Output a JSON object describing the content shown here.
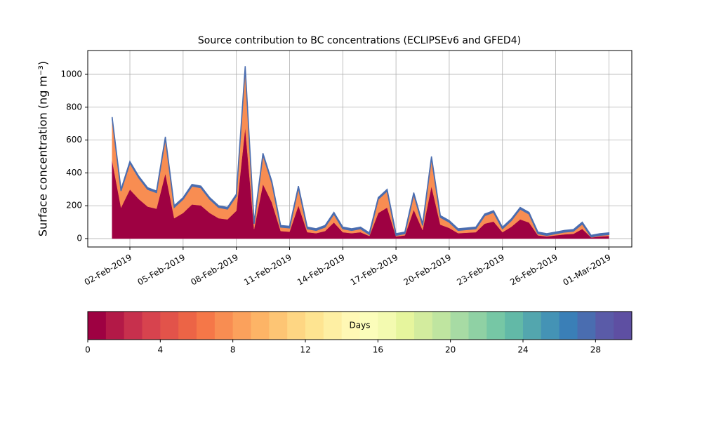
{
  "chart_data": {
    "type": "stacked_area",
    "title": "Source contribution to BC concentrations (ECLIPSEv6 and GFED4)",
    "ylabel": "Surface concentration (ng m⁻³)",
    "x": [
      "2019-02-01T00:00",
      "2019-02-01T12:00",
      "2019-02-02T00:00",
      "2019-02-02T12:00",
      "2019-02-03T00:00",
      "2019-02-03T12:00",
      "2019-02-04T00:00",
      "2019-02-04T12:00",
      "2019-02-05T00:00",
      "2019-02-05T12:00",
      "2019-02-06T00:00",
      "2019-02-06T12:00",
      "2019-02-07T00:00",
      "2019-02-07T12:00",
      "2019-02-08T00:00",
      "2019-02-08T12:00",
      "2019-02-09T00:00",
      "2019-02-09T12:00",
      "2019-02-10T00:00",
      "2019-02-10T12:00",
      "2019-02-11T00:00",
      "2019-02-11T12:00",
      "2019-02-12T00:00",
      "2019-02-12T12:00",
      "2019-02-13T00:00",
      "2019-02-13T12:00",
      "2019-02-14T00:00",
      "2019-02-14T12:00",
      "2019-02-15T00:00",
      "2019-02-15T12:00",
      "2019-02-16T00:00",
      "2019-02-16T12:00",
      "2019-02-17T00:00",
      "2019-02-17T12:00",
      "2019-02-18T00:00",
      "2019-02-18T12:00",
      "2019-02-19T00:00",
      "2019-02-19T12:00",
      "2019-02-20T00:00",
      "2019-02-20T12:00",
      "2019-02-21T00:00",
      "2019-02-21T12:00",
      "2019-02-22T00:00",
      "2019-02-22T12:00",
      "2019-02-23T00:00",
      "2019-02-23T12:00",
      "2019-02-24T00:00",
      "2019-02-24T12:00",
      "2019-02-25T00:00",
      "2019-02-25T12:00",
      "2019-02-26T00:00",
      "2019-02-26T12:00",
      "2019-02-27T00:00",
      "2019-02-27T12:00",
      "2019-02-28T00:00",
      "2019-02-28T12:00",
      "2019-03-01T00:00"
    ],
    "series": [
      {
        "color": "#9e0142",
        "values": [
          475,
          189,
          299,
          241,
          195,
          182,
          397,
          124,
          156,
          208,
          202,
          156,
          124,
          117,
          169,
          676,
          59,
          332,
          221,
          46,
          42,
          202,
          39,
          33,
          46,
          98,
          39,
          33,
          39,
          16,
          156,
          189,
          13,
          20,
          176,
          52,
          319,
          85,
          65,
          33,
          36,
          39,
          91,
          104,
          39,
          72,
          117,
          98,
          20,
          13,
          20,
          26,
          29,
          59,
          7,
          13,
          16
        ]
      },
      {
        "color": "#f88d52",
        "values": [
          255,
          101,
          161,
          129,
          105,
          98,
          213,
          66,
          84,
          112,
          108,
          84,
          66,
          63,
          91,
          364,
          31,
          178,
          119,
          24,
          23,
          108,
          21,
          17,
          24,
          52,
          21,
          17,
          21,
          9,
          84,
          101,
          7,
          10,
          94,
          28,
          171,
          45,
          35,
          17,
          19,
          21,
          49,
          56,
          21,
          38,
          63,
          52,
          10,
          7,
          10,
          14,
          16,
          31,
          3,
          7,
          9
        ]
      },
      {
        "color": "#4a6db0",
        "values": [
          10,
          10,
          10,
          10,
          10,
          10,
          10,
          10,
          10,
          10,
          10,
          10,
          10,
          10,
          10,
          10,
          10,
          10,
          10,
          10,
          10,
          10,
          10,
          10,
          10,
          10,
          10,
          10,
          10,
          10,
          10,
          10,
          10,
          10,
          10,
          10,
          10,
          10,
          10,
          10,
          10,
          10,
          10,
          10,
          10,
          10,
          10,
          10,
          10,
          10,
          10,
          10,
          10,
          10,
          10,
          10,
          10
        ]
      }
    ],
    "xlim": [
      "2019-01-30T15:00",
      "2019-03-02T07:00"
    ],
    "xticks": [
      {
        "value": "2019-02-02T00:00",
        "label": "02-Feb-2019"
      },
      {
        "value": "2019-02-05T00:00",
        "label": "05-Feb-2019"
      },
      {
        "value": "2019-02-08T00:00",
        "label": "08-Feb-2019"
      },
      {
        "value": "2019-02-11T00:00",
        "label": "11-Feb-2019"
      },
      {
        "value": "2019-02-14T00:00",
        "label": "14-Feb-2019"
      },
      {
        "value": "2019-02-17T00:00",
        "label": "17-Feb-2019"
      },
      {
        "value": "2019-02-20T00:00",
        "label": "20-Feb-2019"
      },
      {
        "value": "2019-02-23T00:00",
        "label": "23-Feb-2019"
      },
      {
        "value": "2019-02-26T00:00",
        "label": "26-Feb-2019"
      },
      {
        "value": "2019-03-01T00:00",
        "label": "01-Mar-2019"
      }
    ],
    "ylim": [
      -51,
      1145
    ],
    "yticks": [
      0,
      200,
      400,
      600,
      800,
      1000
    ],
    "grid": true,
    "colorbar": {
      "label": "Days",
      "lim": [
        0,
        30
      ],
      "ticks": [
        0,
        4,
        8,
        12,
        16,
        20,
        24,
        28
      ],
      "colors": [
        "#9e0142",
        "#b31947",
        "#c7304d",
        "#d7434e",
        "#e2534a",
        "#ec6446",
        "#f57748",
        "#f88d52",
        "#fba15c",
        "#fdb466",
        "#fdc574",
        "#fed683",
        "#fee491",
        "#feefa3",
        "#fff8b5",
        "#fbfdba",
        "#f3fab0",
        "#e6f59d",
        "#d3ec9e",
        "#bfe5a0",
        "#a7dba4",
        "#8fd1a4",
        "#76c7a5",
        "#62b9a7",
        "#53a6ae",
        "#4493b5",
        "#3a7fb7",
        "#4a6db0",
        "#5a5ba8",
        "#5e4fa2"
      ]
    }
  }
}
